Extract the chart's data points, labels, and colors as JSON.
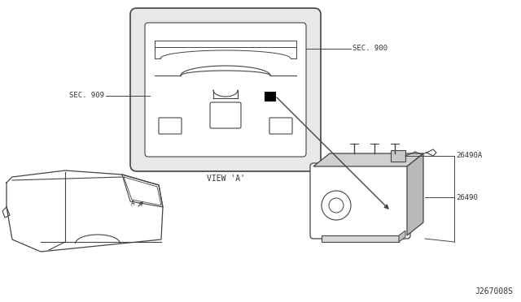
{
  "bg_color": "#ffffff",
  "line_color": "#444444",
  "text_color": "#333333",
  "diagram_id": "J267008S",
  "labels": {
    "sec900": "SEC. 900",
    "sec909": "SEC. 909",
    "view_a": "VIEW 'A'",
    "part_26490A": "26490A",
    "part_26490": "26490"
  },
  "figsize": [
    6.4,
    3.72
  ],
  "dpi": 100
}
